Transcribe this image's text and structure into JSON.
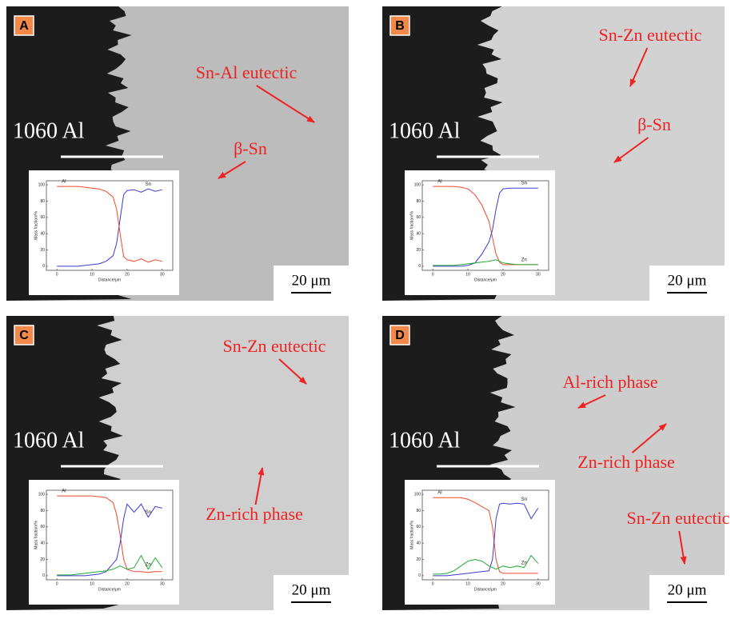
{
  "panels": [
    {
      "label": "A",
      "material": "1060 Al",
      "annotations": [
        "Sn-Al eutectic",
        "β-Sn"
      ],
      "scale_bar": "20 μm",
      "inset": {
        "type": "line",
        "x_label": "Distance/μm",
        "y_label": "Mass fraction/%",
        "xlim": [
          -3,
          33
        ],
        "xticks": [
          0,
          10,
          20,
          30
        ],
        "ylim": [
          -5,
          105
        ],
        "yticks": [
          0,
          20,
          40,
          60,
          80,
          100
        ],
        "x": [
          0,
          2,
          4,
          6,
          8,
          10,
          12,
          14,
          16,
          17,
          18,
          19,
          20,
          22,
          24,
          26,
          28,
          30
        ],
        "series": [
          {
            "name": "Sn",
            "color": "#3b3bd0",
            "values": [
              0,
              0,
              0,
              0,
              1,
              2,
              3,
              6,
              13,
              28,
              58,
              88,
              93,
              94,
              91,
              95,
              92,
              94
            ]
          },
          {
            "name": "Al",
            "color": "#f04a2a",
            "values": [
              98,
              98,
              98,
              98,
              97,
              96,
              95,
              92,
              85,
              70,
              40,
              12,
              8,
              6,
              9,
              5,
              8,
              6
            ]
          }
        ]
      }
    },
    {
      "label": "B",
      "material": "1060 Al",
      "annotations": [
        "Sn-Zn eutectic",
        "β-Sn"
      ],
      "scale_bar": "20 μm",
      "inset": {
        "type": "line",
        "x_label": "Distance/μm",
        "y_label": "Mass fraction/%",
        "xlim": [
          -3,
          33
        ],
        "xticks": [
          0,
          10,
          20,
          30
        ],
        "ylim": [
          -5,
          105
        ],
        "yticks": [
          0,
          20,
          40,
          60,
          80,
          100
        ],
        "x": [
          0,
          2,
          4,
          6,
          8,
          10,
          12,
          14,
          16,
          17,
          18,
          19,
          20,
          22,
          24,
          26,
          28,
          30
        ],
        "series": [
          {
            "name": "Al",
            "color": "#f04a2a",
            "values": [
              98,
              98,
              98,
              98,
              97,
              95,
              88,
              75,
              55,
              35,
              15,
              5,
              2,
              2,
              2,
              2,
              2,
              2
            ]
          },
          {
            "name": "Sn",
            "color": "#3b3bd0",
            "values": [
              0,
              0,
              0,
              0,
              0,
              1,
              4,
              15,
              30,
              45,
              70,
              90,
              95,
              96,
              96,
              96,
              96,
              96
            ]
          },
          {
            "name": "Zn",
            "color": "#22aa33",
            "values": [
              1,
              1,
              1,
              1,
              2,
              3,
              4,
              5,
              6,
              7,
              8,
              6,
              4,
              3,
              2,
              2,
              2,
              2
            ]
          }
        ]
      }
    },
    {
      "label": "C",
      "material": "1060 Al",
      "annotations": [
        "Sn-Zn eutectic",
        "Zn-rich phase"
      ],
      "scale_bar": "20 μm",
      "inset": {
        "type": "line",
        "x_label": "Distance/μm",
        "y_label": "Mass fraction/%",
        "xlim": [
          -3,
          33
        ],
        "xticks": [
          0,
          10,
          20,
          30
        ],
        "ylim": [
          -5,
          105
        ],
        "yticks": [
          0,
          20,
          40,
          60,
          80,
          100
        ],
        "x": [
          0,
          2,
          4,
          6,
          8,
          10,
          12,
          14,
          16,
          17,
          18,
          19,
          20,
          22,
          24,
          26,
          28,
          30
        ],
        "series": [
          {
            "name": "Al",
            "color": "#f04a2a",
            "values": [
              98,
              98,
              98,
              98,
              98,
              98,
              97,
              96,
              90,
              75,
              50,
              20,
              8,
              5,
              5,
              4,
              5,
              5
            ]
          },
          {
            "name": "Sn",
            "color": "#3b3bd0",
            "values": [
              0,
              0,
              0,
              0,
              0,
              1,
              2,
              5,
              15,
              20,
              40,
              70,
              88,
              78,
              88,
              72,
              85,
              83
            ]
          },
          {
            "name": "Zn",
            "color": "#22aa33",
            "values": [
              1,
              1,
              1,
              2,
              3,
              4,
              5,
              6,
              8,
              10,
              12,
              10,
              8,
              10,
              25,
              8,
              22,
              10
            ]
          }
        ]
      }
    },
    {
      "label": "D",
      "material": "1060 Al",
      "annotations": [
        "Al-rich phase",
        "Zn-rich phase",
        "Sn-Zn eutectic"
      ],
      "scale_bar": "20 μm",
      "inset": {
        "type": "line",
        "x_label": "Distance/μm",
        "y_label": "Mass fraction/%",
        "xlim": [
          -3,
          33
        ],
        "xticks": [
          0,
          10,
          20,
          30
        ],
        "ylim": [
          -5,
          105
        ],
        "yticks": [
          0,
          20,
          40,
          60,
          80,
          100
        ],
        "x": [
          0,
          2,
          4,
          6,
          8,
          10,
          12,
          14,
          16,
          17,
          18,
          19,
          20,
          22,
          24,
          26,
          28,
          30
        ],
        "series": [
          {
            "name": "Al",
            "color": "#f04a2a",
            "values": [
              96,
              96,
              96,
              96,
              96,
              94,
              90,
              85,
              80,
              60,
              20,
              5,
              3,
              3,
              3,
              3,
              3,
              3
            ]
          },
          {
            "name": "Sn",
            "color": "#3b3bd0",
            "values": [
              0,
              0,
              0,
              1,
              2,
              3,
              4,
              5,
              6,
              20,
              70,
              88,
              89,
              88,
              89,
              88,
              70,
              83
            ]
          },
          {
            "name": "Zn",
            "color": "#22aa33",
            "values": [
              2,
              2,
              3,
              6,
              12,
              18,
              20,
              18,
              12,
              10,
              8,
              10,
              12,
              10,
              12,
              10,
              25,
              15
            ]
          }
        ]
      }
    }
  ]
}
